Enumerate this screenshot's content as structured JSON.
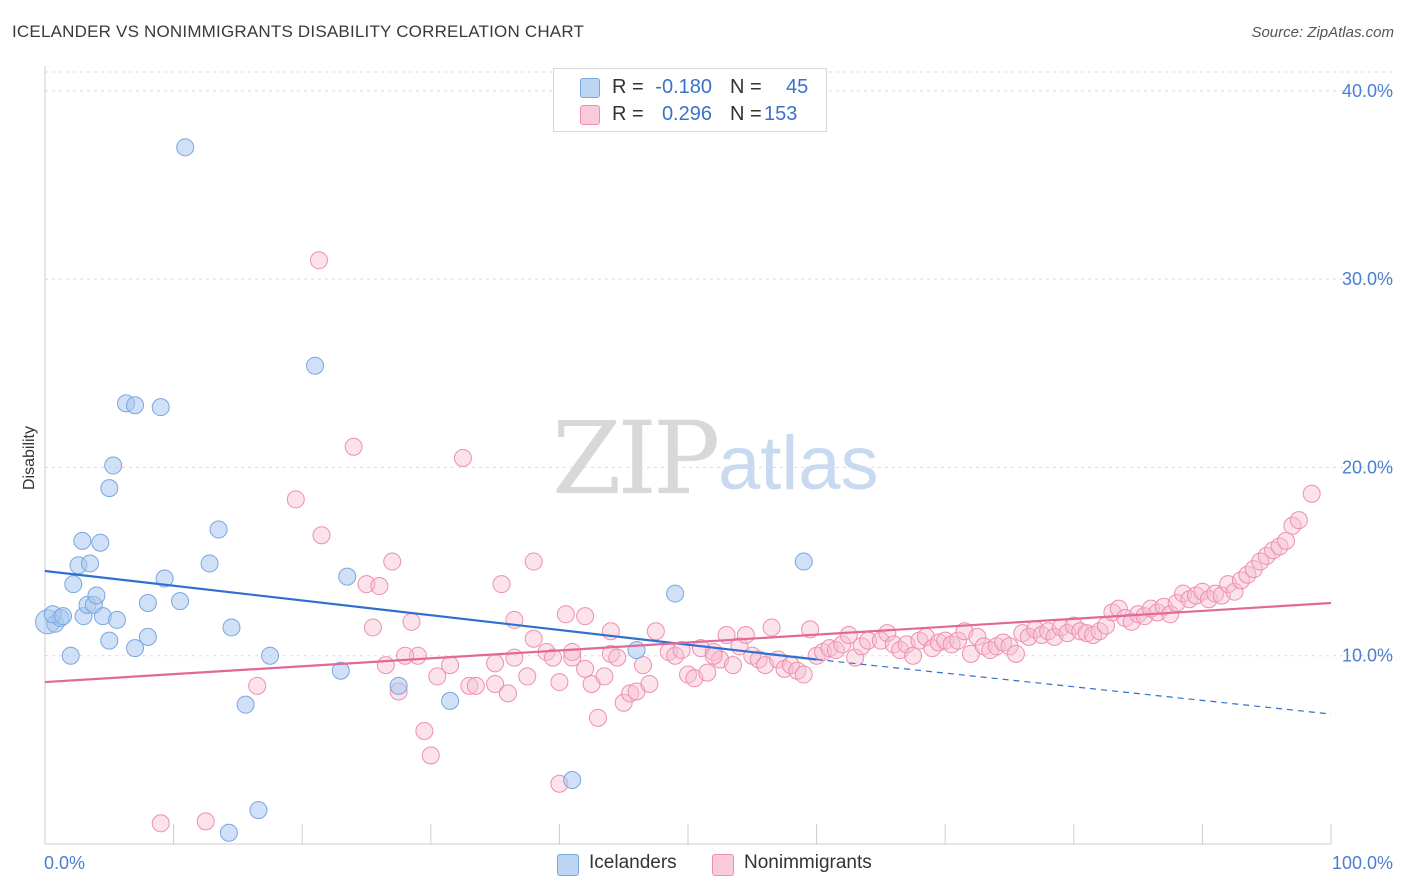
{
  "title": "ICELANDER VS NONIMMIGRANTS DISABILITY CORRELATION CHART",
  "source": "Source: ZipAtlas.com",
  "watermark": {
    "zip": "ZIP",
    "atlas": "atlas"
  },
  "legend": {
    "rows": [
      {
        "r_label": "R =",
        "r_value": "-0.180",
        "n_label": "N =",
        "n_value": "45"
      },
      {
        "r_label": "R =",
        "r_value": "0.296",
        "n_label": "N =",
        "n_value": "153"
      }
    ]
  },
  "bottom_legend": {
    "icelanders": "Icelanders",
    "nonimmigrants": "Nonimmigrants"
  },
  "colors": {
    "icelander_fill": "#aac8f0",
    "icelander_stroke": "#7aa6e0",
    "icelander_line": "#2f6fd0",
    "nonimmigrant_fill": "#f7bfd2",
    "nonimmigrant_stroke": "#ee8fb0",
    "nonimmigrant_line": "#e2679a",
    "tick_text": "#4a7fd0"
  },
  "chart_data": {
    "type": "scatter",
    "title": "ICELANDER VS NONIMMIGRANTS DISABILITY CORRELATION CHART",
    "xlabel": "",
    "ylabel": "Disability",
    "xlim": [
      0,
      100
    ],
    "ylim": [
      0,
      41
    ],
    "x_ticks": [
      "0.0%",
      "100.0%"
    ],
    "y_ticks": [
      {
        "value": 10,
        "label": "10.0%"
      },
      {
        "value": 20,
        "label": "20.0%"
      },
      {
        "value": 30,
        "label": "30.0%"
      },
      {
        "value": 40,
        "label": "40.0%"
      }
    ],
    "grid": true,
    "legend_position": "top-center",
    "series": [
      {
        "name": "Icelanders",
        "r": -0.18,
        "n": 45,
        "trend": {
          "x": [
            0,
            60
          ],
          "y": [
            14.5,
            9.8
          ],
          "dashed_to": [
            100,
            6.9
          ]
        },
        "points": [
          [
            0.2,
            11.8
          ],
          [
            0.8,
            11.7
          ],
          [
            1.2,
            12.0
          ],
          [
            0.6,
            12.2
          ],
          [
            1.4,
            12.1
          ],
          [
            2.0,
            10.0
          ],
          [
            2.2,
            13.8
          ],
          [
            2.6,
            14.8
          ],
          [
            2.9,
            16.1
          ],
          [
            3.0,
            12.1
          ],
          [
            3.3,
            12.7
          ],
          [
            3.5,
            14.9
          ],
          [
            3.8,
            12.7
          ],
          [
            4.0,
            13.2
          ],
          [
            4.3,
            16.0
          ],
          [
            4.5,
            12.1
          ],
          [
            5.0,
            10.8
          ],
          [
            5.3,
            20.1
          ],
          [
            5.6,
            11.9
          ],
          [
            5.0,
            18.9
          ],
          [
            6.3,
            23.4
          ],
          [
            7.0,
            23.3
          ],
          [
            7.0,
            10.4
          ],
          [
            8.0,
            11.0
          ],
          [
            8.0,
            12.8
          ],
          [
            9.0,
            23.2
          ],
          [
            9.3,
            14.1
          ],
          [
            10.5,
            12.9
          ],
          [
            10.9,
            37.0
          ],
          [
            12.8,
            14.9
          ],
          [
            13.5,
            16.7
          ],
          [
            14.3,
            0.6
          ],
          [
            14.5,
            11.5
          ],
          [
            15.6,
            7.4
          ],
          [
            16.6,
            1.8
          ],
          [
            17.5,
            10.0
          ],
          [
            21.0,
            25.4
          ],
          [
            23.0,
            9.2
          ],
          [
            23.5,
            14.2
          ],
          [
            27.5,
            8.4
          ],
          [
            31.5,
            7.6
          ],
          [
            41.0,
            3.4
          ],
          [
            46.0,
            10.3
          ],
          [
            49.0,
            13.3
          ],
          [
            59.0,
            15.0
          ]
        ]
      },
      {
        "name": "Nonimmigrants",
        "r": 0.296,
        "n": 153,
        "trend": {
          "x": [
            0,
            100
          ],
          "y": [
            8.6,
            12.8
          ]
        },
        "points": [
          [
            9.0,
            1.1
          ],
          [
            12.5,
            1.2
          ],
          [
            16.5,
            8.4
          ],
          [
            19.5,
            18.3
          ],
          [
            21.3,
            31.0
          ],
          [
            21.5,
            16.4
          ],
          [
            24.0,
            21.1
          ],
          [
            25.0,
            13.8
          ],
          [
            25.5,
            11.5
          ],
          [
            26.0,
            13.7
          ],
          [
            26.5,
            9.5
          ],
          [
            27.0,
            15.0
          ],
          [
            27.5,
            8.1
          ],
          [
            28.5,
            11.8
          ],
          [
            29.0,
            10.0
          ],
          [
            29.5,
            6.0
          ],
          [
            30.0,
            4.7
          ],
          [
            30.5,
            8.9
          ],
          [
            31.5,
            9.5
          ],
          [
            32.5,
            20.5
          ],
          [
            33.0,
            8.4
          ],
          [
            33.5,
            8.4
          ],
          [
            35.0,
            9.6
          ],
          [
            35.0,
            8.5
          ],
          [
            35.5,
            13.8
          ],
          [
            36.0,
            8.0
          ],
          [
            36.5,
            11.9
          ],
          [
            37.5,
            8.9
          ],
          [
            38.0,
            15.0
          ],
          [
            38.0,
            10.9
          ],
          [
            39.0,
            10.2
          ],
          [
            39.5,
            9.9
          ],
          [
            40.0,
            8.6
          ],
          [
            40.0,
            3.2
          ],
          [
            40.5,
            12.2
          ],
          [
            41.0,
            9.9
          ],
          [
            41.0,
            10.2
          ],
          [
            42.0,
            12.1
          ],
          [
            42.0,
            9.3
          ],
          [
            42.5,
            8.5
          ],
          [
            43.0,
            6.7
          ],
          [
            43.5,
            8.9
          ],
          [
            44.0,
            10.1
          ],
          [
            44.5,
            9.9
          ],
          [
            45.0,
            7.5
          ],
          [
            45.5,
            8.0
          ],
          [
            46.0,
            8.1
          ],
          [
            46.5,
            9.5
          ],
          [
            47.0,
            8.5
          ],
          [
            47.5,
            11.3
          ],
          [
            48.5,
            10.2
          ],
          [
            49.0,
            10.0
          ],
          [
            49.5,
            10.3
          ],
          [
            50.0,
            9.0
          ],
          [
            50.5,
            8.8
          ],
          [
            51.0,
            10.4
          ],
          [
            51.5,
            9.1
          ],
          [
            52.0,
            10.2
          ],
          [
            52.5,
            9.8
          ],
          [
            53.0,
            11.1
          ],
          [
            53.5,
            9.5
          ],
          [
            54.0,
            10.5
          ],
          [
            54.5,
            11.1
          ],
          [
            55.0,
            10.0
          ],
          [
            55.5,
            9.8
          ],
          [
            56.0,
            9.5
          ],
          [
            56.5,
            11.5
          ],
          [
            57.0,
            9.8
          ],
          [
            57.5,
            9.3
          ],
          [
            58.0,
            9.5
          ],
          [
            58.5,
            9.2
          ],
          [
            59.0,
            9.0
          ],
          [
            59.5,
            11.4
          ],
          [
            60.0,
            10.0
          ],
          [
            60.5,
            10.2
          ],
          [
            61.0,
            10.4
          ],
          [
            61.5,
            10.3
          ],
          [
            62.0,
            10.6
          ],
          [
            62.5,
            11.1
          ],
          [
            63.0,
            9.9
          ],
          [
            63.5,
            10.5
          ],
          [
            64.0,
            10.8
          ],
          [
            65.0,
            10.8
          ],
          [
            65.5,
            11.2
          ],
          [
            66.0,
            10.6
          ],
          [
            66.5,
            10.3
          ],
          [
            67.0,
            10.6
          ],
          [
            67.5,
            10.0
          ],
          [
            68.0,
            10.8
          ],
          [
            68.5,
            11.0
          ],
          [
            69.0,
            10.4
          ],
          [
            69.5,
            10.7
          ],
          [
            70.0,
            10.8
          ],
          [
            70.5,
            10.6
          ],
          [
            71.0,
            10.8
          ],
          [
            71.5,
            11.3
          ],
          [
            72.0,
            10.1
          ],
          [
            72.5,
            11.0
          ],
          [
            73.0,
            10.5
          ],
          [
            73.5,
            10.3
          ],
          [
            74.0,
            10.5
          ],
          [
            74.5,
            10.7
          ],
          [
            75.0,
            10.5
          ],
          [
            75.5,
            10.1
          ],
          [
            76.0,
            11.2
          ],
          [
            76.5,
            11.0
          ],
          [
            77.0,
            11.4
          ],
          [
            77.5,
            11.1
          ],
          [
            78.0,
            11.3
          ],
          [
            78.5,
            11.0
          ],
          [
            79.0,
            11.5
          ],
          [
            79.5,
            11.2
          ],
          [
            80.0,
            11.6
          ],
          [
            80.5,
            11.3
          ],
          [
            81.0,
            11.2
          ],
          [
            81.5,
            11.1
          ],
          [
            82.0,
            11.3
          ],
          [
            82.5,
            11.6
          ],
          [
            83.0,
            12.3
          ],
          [
            83.5,
            12.5
          ],
          [
            84.0,
            12.0
          ],
          [
            84.5,
            11.8
          ],
          [
            85.0,
            12.2
          ],
          [
            85.5,
            12.1
          ],
          [
            86.0,
            12.5
          ],
          [
            86.5,
            12.3
          ],
          [
            87.0,
            12.6
          ],
          [
            87.5,
            12.2
          ],
          [
            88.0,
            12.8
          ],
          [
            88.5,
            13.3
          ],
          [
            89.0,
            13.0
          ],
          [
            89.5,
            13.2
          ],
          [
            90.0,
            13.4
          ],
          [
            90.5,
            13.0
          ],
          [
            91.0,
            13.3
          ],
          [
            91.5,
            13.2
          ],
          [
            92.0,
            13.8
          ],
          [
            92.5,
            13.4
          ],
          [
            93.0,
            14.0
          ],
          [
            93.5,
            14.3
          ],
          [
            94.0,
            14.6
          ],
          [
            94.5,
            15.0
          ],
          [
            95.0,
            15.3
          ],
          [
            95.5,
            15.6
          ],
          [
            96.0,
            15.8
          ],
          [
            96.5,
            16.1
          ],
          [
            97.0,
            16.9
          ],
          [
            97.5,
            17.2
          ],
          [
            98.5,
            18.6
          ],
          [
            28.0,
            10.0
          ],
          [
            36.5,
            9.9
          ],
          [
            44.0,
            11.3
          ],
          [
            52.0,
            10.0
          ]
        ]
      }
    ]
  }
}
